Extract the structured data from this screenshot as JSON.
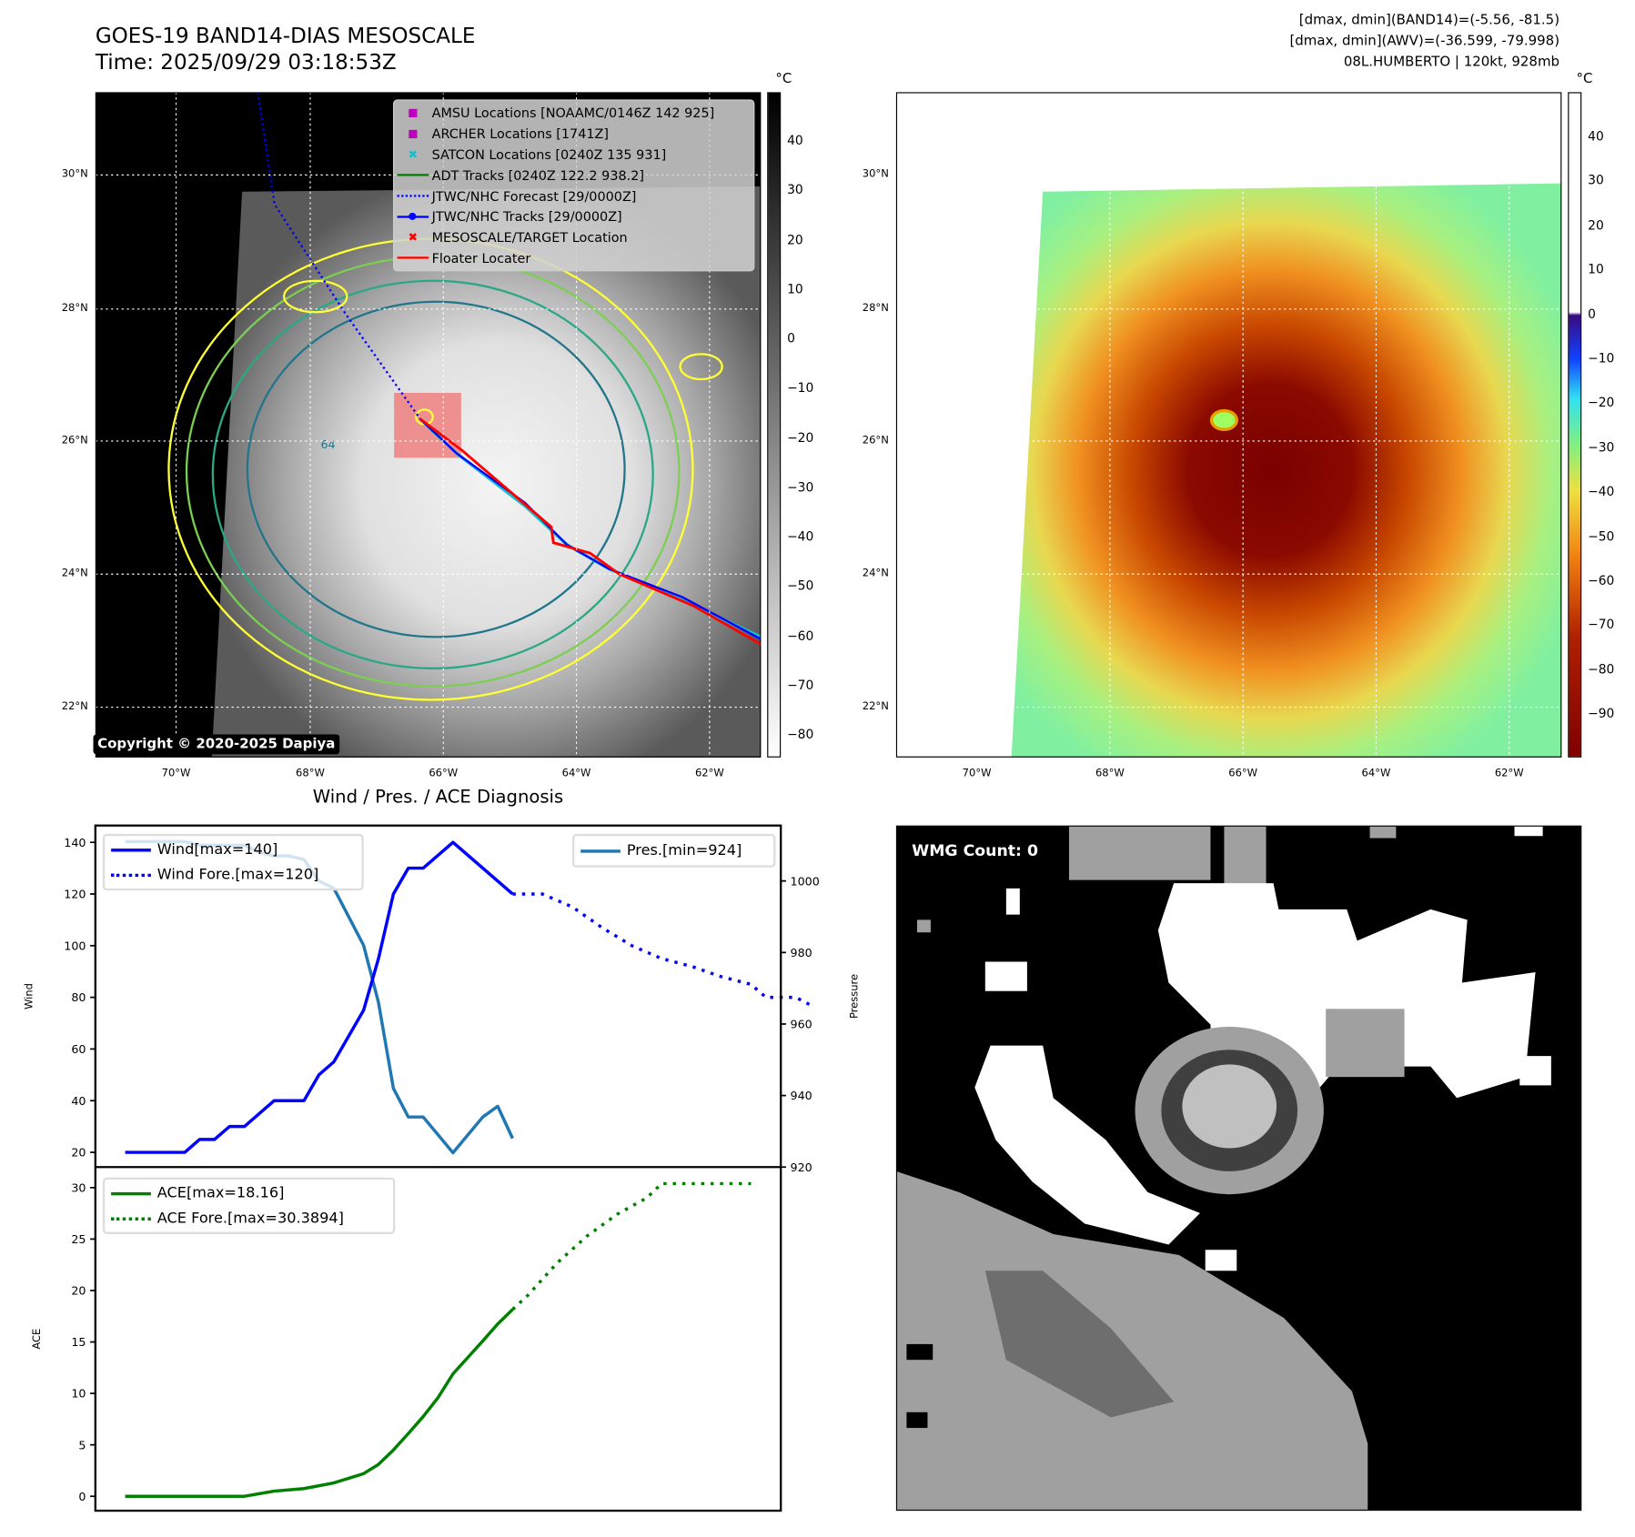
{
  "header": {
    "title": "GOES-19 BAND14-DIAS MESOSCALE",
    "time": "Time: 2025/09/29 03:18:53Z",
    "info": [
      "[dmax, dmin](BAND14)=(-5.56, -81.5)",
      "[dmax, dmin](AWV)=(-36.599, -79.998)",
      "08L.HUMBERTO | 120kt, 928mb"
    ]
  },
  "map_left": {
    "legend": [
      {
        "label": "AMSU Locations [NOAAMC/0146Z 142 925]",
        "icon": "square-marker",
        "color": "#c000c0"
      },
      {
        "label": "ARCHER Locations [1741Z]",
        "icon": "square-marker",
        "color": "#c000c0"
      },
      {
        "label": "SATCON Locations [0240Z 135 931]",
        "icon": "x-marker",
        "color": "#17becf"
      },
      {
        "label": "ADT Tracks [0240Z 122.2 938.2]",
        "icon": "solid-line",
        "color": "#008000"
      },
      {
        "label": "JTWC/NHC Forecast [29/0000Z]",
        "icon": "dotted-line",
        "color": "#0000ff"
      },
      {
        "label": "JTWC/NHC Tracks [29/0000Z]",
        "icon": "line-dot",
        "color": "#0000ff"
      },
      {
        "label": "MESOSCALE/TARGET Location",
        "icon": "x-marker",
        "color": "#ff0000"
      },
      {
        "label": "Floater Locater",
        "icon": "solid-line",
        "color": "#ff0000"
      }
    ],
    "copyright": "Copyright © 2020-2025 Dapiya",
    "contour_label": "64",
    "colorbar_unit": "°C",
    "colorbar_ticks": [
      "40",
      "30",
      "20",
      "10",
      "0",
      "−10",
      "−20",
      "−30",
      "−40",
      "−50",
      "−60",
      "−70",
      "−80"
    ]
  },
  "map_right": {
    "colorbar_unit": "°C",
    "colorbar_ticks": [
      "40",
      "30",
      "20",
      "10",
      "0",
      "−10",
      "−20",
      "−30",
      "−40",
      "−50",
      "−60",
      "−70",
      "−80",
      "−90"
    ]
  },
  "lat_labels": [
    "30°N",
    "28°N",
    "26°N",
    "24°N",
    "22°N"
  ],
  "lon_labels": [
    "70°W",
    "68°W",
    "66°W",
    "64°W",
    "62°W"
  ],
  "mask_panel": {
    "label": "WMG Count: 0"
  },
  "chart_data": [
    {
      "type": "line",
      "title": "Wind / Pres. / ACE Diagnosis",
      "ylabel": "Wind",
      "y2label": "Pressure",
      "xlim": [
        -2,
        44
      ],
      "ylim": [
        14.3,
        146.5
      ],
      "y2lim": [
        920,
        1015.5
      ],
      "yticks": [
        20,
        40,
        60,
        80,
        100,
        120,
        140
      ],
      "y2ticks": [
        920,
        940,
        960,
        980,
        1000
      ],
      "series": [
        {
          "name": "Wind[max=140]",
          "axis": "left",
          "style": "solid",
          "color": "#0000ff",
          "x": [
            0,
            4,
            5,
            6,
            7,
            8,
            9,
            10,
            12,
            13,
            14,
            15,
            16,
            17,
            18,
            19,
            20,
            22,
            26
          ],
          "y": [
            20,
            20,
            25,
            25,
            30,
            30,
            35,
            40,
            40,
            50,
            55,
            65,
            75,
            95,
            120,
            130,
            130,
            140,
            120
          ]
        },
        {
          "name": "Wind Fore.[max=120]",
          "axis": "left",
          "style": "dotted",
          "color": "#0000ff",
          "x": [
            26,
            28,
            30,
            32,
            34,
            36,
            38,
            40,
            42,
            43,
            45,
            46
          ],
          "y": [
            120,
            120,
            115,
            107,
            100,
            95,
            92,
            88,
            85,
            80,
            80,
            77
          ]
        },
        {
          "name": "Pres.[min=924]",
          "axis": "right",
          "style": "solid",
          "color": "#1f77b4",
          "x": [
            0,
            4,
            5,
            8,
            9,
            10,
            11,
            12,
            13,
            14,
            15,
            16,
            17,
            18,
            19,
            20,
            22,
            24,
            25,
            26
          ],
          "y": [
            1011,
            1011,
            1010,
            1010,
            1008,
            1007,
            1007,
            1006,
            1000,
            998,
            990,
            982,
            966,
            942,
            934,
            934,
            924,
            934,
            937,
            928
          ]
        }
      ]
    },
    {
      "type": "line",
      "ylabel": "ACE",
      "xlim": [
        -2,
        44
      ],
      "ylim": [
        -1.4,
        32
      ],
      "yticks": [
        0,
        5,
        10,
        15,
        20,
        25,
        30
      ],
      "series": [
        {
          "name": "ACE[max=18.16]",
          "style": "solid",
          "color": "#008000",
          "x": [
            0,
            2,
            4,
            6,
            8,
            10,
            12,
            14,
            15,
            16,
            17,
            18,
            19,
            20,
            21,
            22,
            23,
            24,
            25,
            26
          ],
          "y": [
            0,
            0,
            0,
            0,
            0,
            0.5,
            0.75,
            1.3,
            1.75,
            2.2,
            3.1,
            4.5,
            6.1,
            7.75,
            9.6,
            11.9,
            13.5,
            15.1,
            16.75,
            18.16
          ]
        },
        {
          "name": "ACE Fore.[max=30.3894]",
          "style": "dotted",
          "color": "#008000",
          "x": [
            26,
            27,
            29,
            31,
            33,
            35,
            36,
            42
          ],
          "y": [
            18.16,
            19.5,
            22.7,
            25.3,
            27.4,
            29,
            30.39,
            30.39
          ]
        }
      ]
    }
  ]
}
